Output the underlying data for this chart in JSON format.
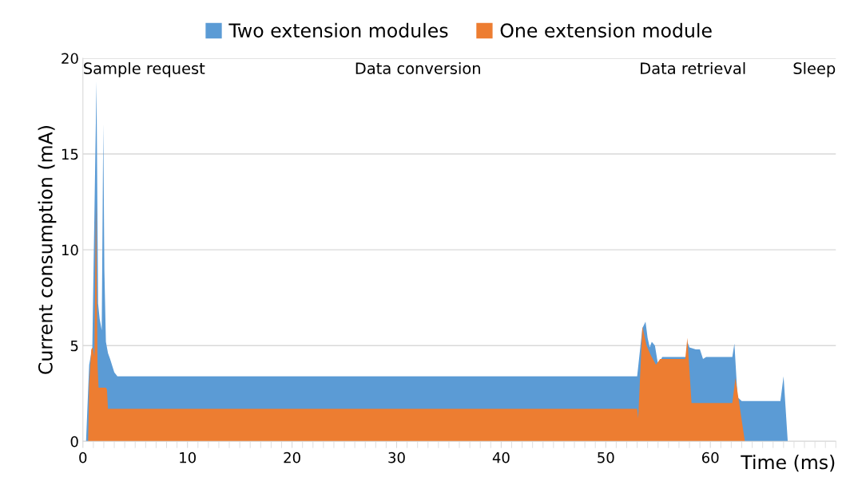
{
  "chart_data": {
    "type": "area",
    "ylabel": "Current consumption (mA)",
    "xlabel": "Time (ms)",
    "xlim": [
      0,
      72
    ],
    "xticks": [
      0,
      10,
      20,
      30,
      40,
      50,
      60
    ],
    "ylim": [
      0,
      20
    ],
    "yticks": [
      0,
      5,
      10,
      15,
      20
    ],
    "grid": "y",
    "legend": "top",
    "series": [
      {
        "name": "Two extension modules",
        "color": "#5b9bd5",
        "x": [
          0.3,
          0.6,
          0.9,
          1.1,
          1.3,
          1.45,
          1.6,
          1.8,
          1.95,
          2.05,
          2.2,
          2.4,
          2.6,
          3.0,
          3.3,
          4.0,
          23.5,
          53.0,
          53.1,
          53.5,
          53.8,
          54.0,
          54.2,
          54.4,
          54.7,
          55.0,
          55.4,
          57.7,
          57.8,
          58.0,
          58.6,
          59.0,
          59.3,
          59.6,
          62.1,
          62.3,
          62.6,
          63.0,
          66.7,
          67.0,
          67.4
        ],
        "values": [
          0,
          4.0,
          4.9,
          null,
          18.8,
          7.2,
          6.4,
          5.8,
          16.6,
          9.0,
          5.2,
          4.6,
          4.3,
          3.6,
          3.4,
          3.4,
          3.4,
          3.4,
          null,
          5.9,
          6.25,
          5.4,
          4.9,
          5.2,
          5.0,
          4.0,
          4.4,
          4.4,
          5.2,
          4.9,
          4.8,
          4.8,
          4.3,
          4.4,
          4.4,
          5.1,
          2.3,
          2.1,
          2.1,
          3.4,
          0
        ]
      },
      {
        "name": "One extension module",
        "color": "#ed7d31",
        "x": [
          0.5,
          0.6,
          0.8,
          0.95,
          1.1,
          1.25,
          1.4,
          1.5,
          2.2,
          2.3,
          2.4,
          53.0,
          53.1,
          53.5,
          53.9,
          54.3,
          54.8,
          55.2,
          57.6,
          57.8,
          58.2,
          62.1,
          62.4,
          63.3
        ],
        "values": [
          0,
          3.0,
          4.8,
          4.9,
          4.4,
          12.5,
          4.0,
          2.8,
          2.8,
          2.7,
          1.7,
          1.7,
          1.2,
          6.0,
          5.0,
          4.5,
          4.0,
          4.3,
          4.3,
          5.4,
          2.0,
          2.0,
          3.3,
          0
        ]
      }
    ],
    "annotations": [
      "Sample request",
      "Data conversion",
      "Data retrieval",
      "Sleep"
    ]
  }
}
